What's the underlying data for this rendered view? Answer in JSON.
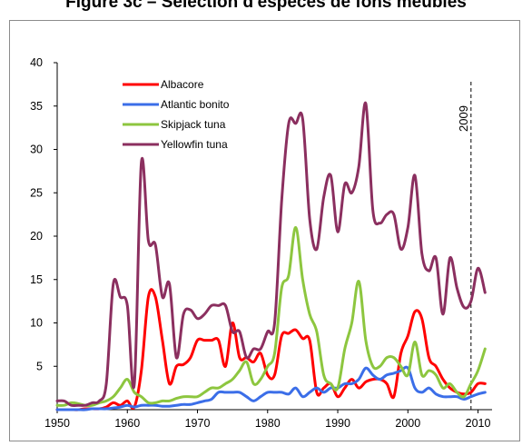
{
  "chart_data": {
    "type": "line",
    "title": "Figure 3c – Sélection d'espèces de fons meubles",
    "xlabel": "",
    "ylabel": "",
    "xlim": [
      1950,
      2012
    ],
    "ylim": [
      0,
      40
    ],
    "xticks": [
      1950,
      1960,
      1970,
      1980,
      1990,
      2000,
      2010
    ],
    "yticks": [
      5,
      10,
      15,
      20,
      25,
      30,
      35,
      40
    ],
    "grid": false,
    "legend_position": "top-left",
    "annotation": {
      "label": "2009",
      "x": 2009,
      "style": "dashed vertical line"
    },
    "series": [
      {
        "name": "Albacore",
        "color": "#ff0000",
        "x": [
          1950,
          1951,
          1952,
          1953,
          1954,
          1955,
          1956,
          1957,
          1958,
          1959,
          1960,
          1961,
          1962,
          1963,
          1964,
          1965,
          1966,
          1967,
          1968,
          1969,
          1970,
          1971,
          1972,
          1973,
          1974,
          1975,
          1976,
          1977,
          1978,
          1979,
          1980,
          1981,
          1982,
          1983,
          1984,
          1985,
          1986,
          1987,
          1988,
          1989,
          1990,
          1991,
          1992,
          1993,
          1994,
          1995,
          1996,
          1997,
          1998,
          1999,
          2000,
          2001,
          2002,
          2003,
          2004,
          2005,
          2006,
          2007,
          2008,
          2009,
          2010,
          2011
        ],
        "values": [
          0,
          0,
          0,
          0,
          0.1,
          0.1,
          0.1,
          0.3,
          0.8,
          0.5,
          1,
          0.3,
          4.5,
          13,
          13,
          8,
          3,
          5,
          5.2,
          6,
          8,
          8,
          8,
          8,
          5,
          10,
          6,
          6,
          5.5,
          6.5,
          4,
          4,
          8.5,
          8.8,
          9.2,
          8.2,
          8,
          2,
          2.5,
          3,
          1.5,
          2.5,
          3.5,
          2.5,
          3.2,
          3.5,
          3.5,
          3,
          1.5,
          6.5,
          8.5,
          11.3,
          10.5,
          6,
          5,
          3.5,
          2.5,
          2,
          1.8,
          2,
          3,
          3
        ]
      },
      {
        "name": "Atlantic bonito",
        "color": "#3b6ee8",
        "x": [
          1950,
          1951,
          1952,
          1953,
          1954,
          1955,
          1956,
          1957,
          1958,
          1959,
          1960,
          1961,
          1962,
          1963,
          1964,
          1965,
          1966,
          1967,
          1968,
          1969,
          1970,
          1971,
          1972,
          1973,
          1974,
          1975,
          1976,
          1977,
          1978,
          1979,
          1980,
          1981,
          1982,
          1983,
          1984,
          1985,
          1986,
          1987,
          1988,
          1989,
          1990,
          1991,
          1992,
          1993,
          1994,
          1995,
          1996,
          1997,
          1998,
          1999,
          2000,
          2001,
          2002,
          2003,
          2004,
          2005,
          2006,
          2007,
          2008,
          2009,
          2010,
          2011
        ],
        "values": [
          0,
          0,
          0,
          0,
          0,
          0.1,
          0.1,
          0.1,
          0.2,
          0.3,
          0.5,
          0.3,
          0.5,
          0.5,
          0.5,
          0.4,
          0.4,
          0.5,
          0.6,
          0.6,
          0.8,
          1,
          1.2,
          2,
          2,
          2,
          2,
          1.5,
          1,
          1.5,
          2,
          2,
          2,
          1.8,
          2.5,
          1.5,
          2,
          2.5,
          2,
          2.5,
          2.5,
          3,
          3,
          3.5,
          4.8,
          4,
          3.5,
          4,
          4.2,
          4.5,
          4.8,
          2.5,
          2,
          2.5,
          1.8,
          1.5,
          1.5,
          1.5,
          1.2,
          1.5,
          1.8,
          2
        ]
      },
      {
        "name": "Skipjack tuna",
        "color": "#8dc63f",
        "x": [
          1950,
          1951,
          1952,
          1953,
          1954,
          1955,
          1956,
          1957,
          1958,
          1959,
          1960,
          1961,
          1962,
          1963,
          1964,
          1965,
          1966,
          1967,
          1968,
          1969,
          1970,
          1971,
          1972,
          1973,
          1974,
          1975,
          1976,
          1977,
          1978,
          1979,
          1980,
          1981,
          1982,
          1983,
          1984,
          1985,
          1986,
          1987,
          1988,
          1989,
          1990,
          1991,
          1992,
          1993,
          1994,
          1995,
          1996,
          1997,
          1998,
          1999,
          2000,
          2001,
          2002,
          2003,
          2004,
          2005,
          2006,
          2007,
          2008,
          2009,
          2010,
          2011
        ],
        "values": [
          0.5,
          0.5,
          0.8,
          0.7,
          0.5,
          0.5,
          0.8,
          1,
          1.5,
          2.5,
          3.5,
          2,
          1.5,
          0.8,
          0.8,
          1,
          1,
          1.3,
          1.5,
          1.5,
          1.5,
          2,
          2.5,
          2.5,
          3,
          3.5,
          4.5,
          5.5,
          3,
          3.5,
          5,
          6.5,
          14,
          15.5,
          21,
          15,
          11,
          9,
          4,
          3,
          2.5,
          7,
          10,
          14.8,
          8,
          5,
          5,
          6,
          6,
          5,
          4,
          7.8,
          4,
          4.5,
          4,
          2.5,
          3,
          2,
          1.5,
          3,
          4.5,
          7
        ]
      },
      {
        "name": "Yellowfin tuna",
        "color": "#8b2f5f",
        "x": [
          1950,
          1951,
          1952,
          1953,
          1954,
          1955,
          1956,
          1957,
          1958,
          1959,
          1960,
          1961,
          1962,
          1963,
          1964,
          1965,
          1966,
          1967,
          1968,
          1969,
          1970,
          1971,
          1972,
          1973,
          1974,
          1975,
          1976,
          1977,
          1978,
          1979,
          1980,
          1981,
          1982,
          1983,
          1984,
          1985,
          1986,
          1987,
          1988,
          1989,
          1990,
          1991,
          1992,
          1993,
          1994,
          1995,
          1996,
          1997,
          1998,
          1999,
          2000,
          2001,
          2002,
          2003,
          2004,
          2005,
          2006,
          2007,
          2008,
          2009,
          2010,
          2011
        ],
        "values": [
          1,
          1,
          0.5,
          0.5,
          0.5,
          0.8,
          1,
          3,
          14.5,
          13,
          12,
          3,
          28.5,
          19.5,
          19,
          13,
          14.5,
          6,
          11,
          11.5,
          10.5,
          11,
          12,
          12,
          12,
          9,
          9,
          6,
          7,
          7,
          9,
          10,
          24,
          33,
          33,
          33.5,
          22,
          18.5,
          24.5,
          27,
          20.5,
          26,
          25,
          28,
          35.3,
          23,
          21.5,
          22.5,
          22.5,
          18.5,
          21,
          27,
          18,
          16,
          17.5,
          11,
          17.5,
          14,
          11.8,
          12.5,
          16.3,
          13.5
        ]
      }
    ]
  }
}
